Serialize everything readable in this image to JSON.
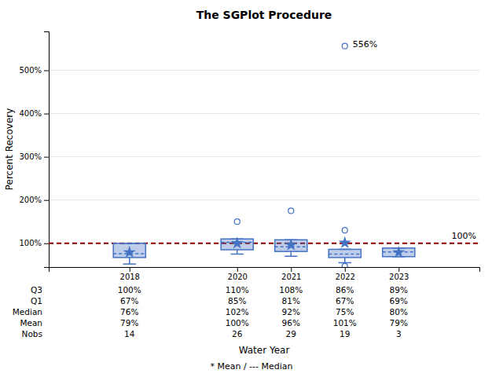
{
  "chart_data": {
    "type": "box",
    "title": "The SGPlot Procedure",
    "x_label": "Water Year",
    "y_label": "Percent Recovery",
    "footer": "* Mean / --- Median",
    "x": [
      2018,
      2020,
      2021,
      2022,
      2023
    ],
    "boxes": {
      "q1": [
        67,
        85,
        81,
        67,
        69
      ],
      "median": [
        76,
        102,
        92,
        75,
        80
      ],
      "q3": [
        100,
        110,
        108,
        86,
        89
      ],
      "mean": [
        79,
        100,
        96,
        101,
        79
      ],
      "whisker_low": [
        52,
        75,
        70,
        55,
        69
      ],
      "whisker_high": [
        100,
        110,
        108,
        86,
        89
      ],
      "color": "#4472c4"
    },
    "outliers": {
      "x": [
        2020,
        2021,
        2022,
        2022,
        2022
      ],
      "y": [
        150,
        175,
        130,
        556,
        47
      ]
    },
    "annotations": [
      {
        "x": 2022,
        "y": 556,
        "text": "556%"
      }
    ],
    "ref_line": {
      "value": 100,
      "label": "100%",
      "color": "#8b0000"
    },
    "xlim": [
      2016.5,
      2024.5
    ],
    "xticks": [
      2018,
      2020,
      2021,
      2022,
      2023
    ],
    "ylim": [
      45,
      590
    ],
    "yticks": [
      {
        "value": 100,
        "label": "100%"
      },
      {
        "value": 200,
        "label": "200%"
      },
      {
        "value": 300,
        "label": "300%"
      },
      {
        "value": 400,
        "label": "400%"
      },
      {
        "value": 500,
        "label": "500%"
      }
    ],
    "grid": true,
    "table": [
      {
        "label": "Q3",
        "values": [
          100,
          110,
          108,
          86,
          89
        ],
        "value_labels": [
          "100%",
          "110%",
          "108%",
          "86%",
          "89%"
        ]
      },
      {
        "label": "Q1",
        "values": [
          67,
          85,
          81,
          67,
          69
        ],
        "value_labels": [
          "67%",
          "85%",
          "81%",
          "67%",
          "69%"
        ]
      },
      {
        "label": "Median",
        "values": [
          76,
          102,
          92,
          75,
          80
        ],
        "value_labels": [
          "76%",
          "102%",
          "92%",
          "75%",
          "80%"
        ]
      },
      {
        "label": "Mean",
        "values": [
          79,
          100,
          96,
          101,
          79
        ],
        "value_labels": [
          "79%",
          "100%",
          "96%",
          "101%",
          "79%"
        ]
      },
      {
        "label": "Nobs",
        "values": [
          14,
          26,
          29,
          19,
          3
        ]
      }
    ]
  }
}
